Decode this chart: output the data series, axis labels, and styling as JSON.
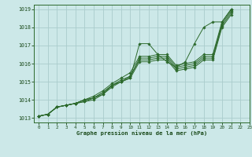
{
  "title": "Graphe pression niveau de la mer (hPa)",
  "bg_color": "#cce8e8",
  "grid_color": "#aacccc",
  "line_color": "#2d6a2d",
  "marker_color": "#2d6a2d",
  "xlim": [
    -0.5,
    23
  ],
  "ylim": [
    1012.75,
    1019.25
  ],
  "yticks": [
    1013,
    1014,
    1015,
    1016,
    1017,
    1018,
    1019
  ],
  "xticks": [
    0,
    1,
    2,
    3,
    4,
    5,
    6,
    7,
    8,
    9,
    10,
    11,
    12,
    13,
    14,
    15,
    16,
    17,
    18,
    19,
    20,
    21,
    22,
    23
  ],
  "series": [
    [
      1013.1,
      1013.2,
      1013.6,
      1013.7,
      1013.8,
      1013.9,
      1014.1,
      1014.4,
      1014.8,
      1015.0,
      1015.2,
      1017.1,
      1017.1,
      1016.5,
      1016.1,
      1015.8,
      1016.1,
      1017.1,
      1018.0,
      1018.3,
      1018.3,
      1019.0,
      null,
      null
    ],
    [
      1013.1,
      1013.2,
      1013.6,
      1013.7,
      1013.8,
      1014.0,
      1014.2,
      1014.5,
      1014.9,
      1015.2,
      1015.5,
      1016.4,
      1016.4,
      1016.5,
      1016.5,
      1015.9,
      1016.0,
      1016.1,
      1016.5,
      1016.5,
      1018.3,
      1019.0,
      null,
      null
    ],
    [
      1013.1,
      1013.2,
      1013.6,
      1013.7,
      1013.8,
      1014.0,
      1014.1,
      1014.4,
      1014.8,
      1015.1,
      1015.3,
      1016.3,
      1016.3,
      1016.4,
      1016.4,
      1015.8,
      1015.9,
      1016.0,
      1016.4,
      1016.4,
      1018.2,
      1018.9,
      null,
      null
    ],
    [
      1013.1,
      1013.2,
      1013.6,
      1013.7,
      1013.8,
      1014.0,
      1014.1,
      1014.3,
      1014.8,
      1015.0,
      1015.3,
      1016.2,
      1016.2,
      1016.3,
      1016.3,
      1015.7,
      1015.8,
      1015.9,
      1016.3,
      1016.3,
      1018.1,
      1018.8,
      null,
      null
    ],
    [
      1013.1,
      1013.2,
      1013.6,
      1013.7,
      1013.8,
      1013.9,
      1014.0,
      1014.3,
      1014.7,
      1015.0,
      1015.2,
      1016.1,
      1016.1,
      1016.2,
      1016.2,
      1015.6,
      1015.7,
      1015.8,
      1016.2,
      1016.2,
      1018.0,
      1018.7,
      null,
      null
    ]
  ]
}
